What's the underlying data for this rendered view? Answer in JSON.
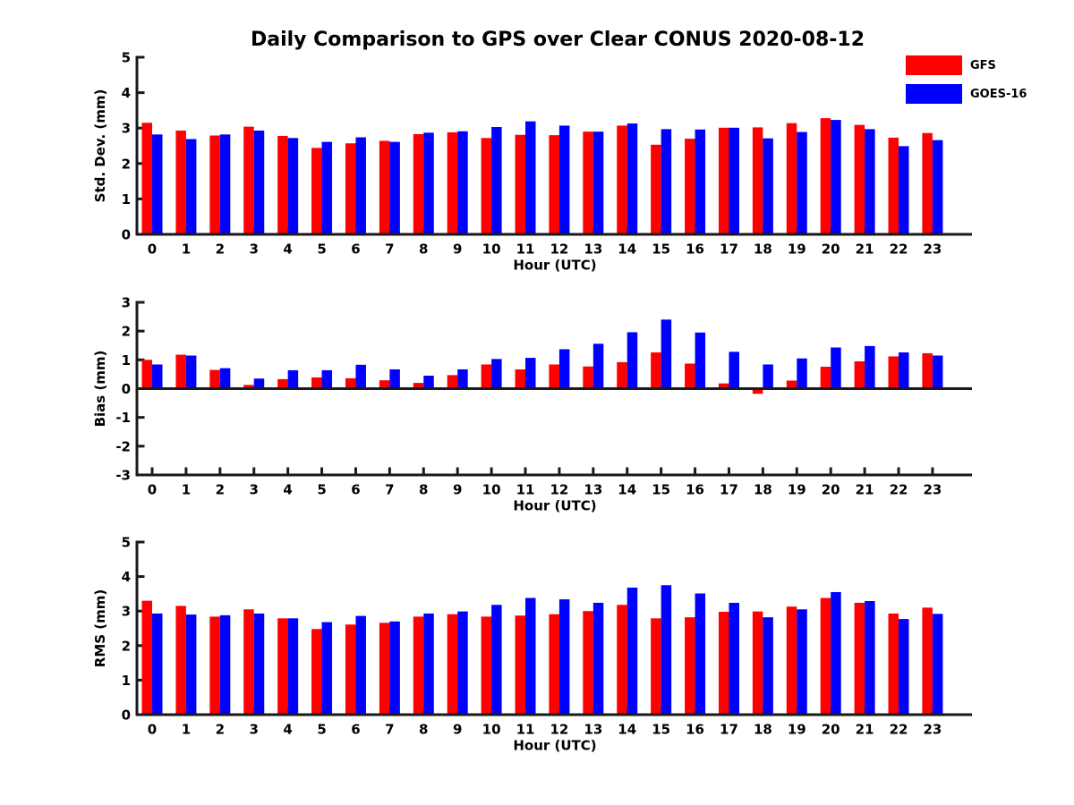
{
  "figure": {
    "title": "Daily Comparison to GPS over Clear CONUS 2020-08-12",
    "background": "#ffffff",
    "axis_color": "#1a1a1a"
  },
  "legend": {
    "position": "top-right",
    "items": [
      {
        "label": "GFS",
        "color": "#ff0000"
      },
      {
        "label": "GOES-16",
        "color": "#0000ff"
      }
    ]
  },
  "chart_data": [
    {
      "type": "bar",
      "panel": "std-dev",
      "ylabel": "Std. Dev. (mm)",
      "xlabel": "Hour (UTC)",
      "ylim": [
        0,
        5
      ],
      "yticks": [
        0,
        1,
        2,
        3,
        4,
        5
      ],
      "grid": false,
      "categories": [
        0,
        1,
        2,
        3,
        4,
        5,
        6,
        7,
        8,
        9,
        10,
        11,
        12,
        13,
        14,
        15,
        16,
        17,
        18,
        19,
        20,
        21,
        22,
        23
      ],
      "series": [
        {
          "name": "GFS",
          "color": "#ff0000",
          "values": [
            3.15,
            2.93,
            2.79,
            3.04,
            2.78,
            2.44,
            2.57,
            2.64,
            2.83,
            2.88,
            2.72,
            2.81,
            2.8,
            2.9,
            3.07,
            2.53,
            2.7,
            3.01,
            3.02,
            3.14,
            3.28,
            3.09,
            2.73,
            2.86
          ]
        },
        {
          "name": "GOES-16",
          "color": "#0000ff",
          "values": [
            2.82,
            2.69,
            2.82,
            2.93,
            2.72,
            2.61,
            2.74,
            2.61,
            2.87,
            2.91,
            3.03,
            3.19,
            3.07,
            2.9,
            3.13,
            2.97,
            2.96,
            3.01,
            2.71,
            2.89,
            3.23,
            2.97,
            2.49,
            2.66
          ]
        }
      ]
    },
    {
      "type": "bar",
      "panel": "bias",
      "ylabel": "Bias (mm)",
      "xlabel": "Hour (UTC)",
      "ylim": [
        -3,
        3
      ],
      "yticks": [
        -3,
        -2,
        -1,
        0,
        1,
        2,
        3
      ],
      "grid": false,
      "categories": [
        0,
        1,
        2,
        3,
        4,
        5,
        6,
        7,
        8,
        9,
        10,
        11,
        12,
        13,
        14,
        15,
        16,
        17,
        18,
        19,
        20,
        21,
        22,
        23
      ],
      "series": [
        {
          "name": "GFS",
          "color": "#ff0000",
          "values": [
            1.0,
            1.18,
            0.65,
            0.13,
            0.33,
            0.39,
            0.36,
            0.29,
            0.2,
            0.47,
            0.84,
            0.67,
            0.84,
            0.77,
            0.92,
            1.26,
            0.87,
            0.18,
            -0.18,
            0.28,
            0.76,
            0.95,
            1.12,
            1.23
          ]
        },
        {
          "name": "GOES-16",
          "color": "#0000ff",
          "values": [
            0.84,
            1.15,
            0.71,
            0.35,
            0.64,
            0.64,
            0.83,
            0.67,
            0.45,
            0.67,
            1.03,
            1.07,
            1.37,
            1.56,
            1.96,
            2.4,
            1.95,
            1.28,
            0.84,
            1.05,
            1.43,
            1.48,
            1.26,
            1.15
          ]
        }
      ]
    },
    {
      "type": "bar",
      "panel": "rms",
      "ylabel": "RMS (mm)",
      "xlabel": "Hour (UTC)",
      "ylim": [
        0,
        5
      ],
      "yticks": [
        0,
        1,
        2,
        3,
        4,
        5
      ],
      "grid": false,
      "categories": [
        0,
        1,
        2,
        3,
        4,
        5,
        6,
        7,
        8,
        9,
        10,
        11,
        12,
        13,
        14,
        15,
        16,
        17,
        18,
        19,
        20,
        21,
        22,
        23
      ],
      "series": [
        {
          "name": "GFS",
          "color": "#ff0000",
          "values": [
            3.3,
            3.15,
            2.84,
            3.05,
            2.79,
            2.48,
            2.61,
            2.66,
            2.84,
            2.91,
            2.84,
            2.87,
            2.91,
            3.0,
            3.18,
            2.79,
            2.82,
            2.98,
            2.99,
            3.13,
            3.38,
            3.24,
            2.93,
            3.1
          ]
        },
        {
          "name": "GOES-16",
          "color": "#0000ff",
          "values": [
            2.93,
            2.9,
            2.88,
            2.93,
            2.79,
            2.68,
            2.86,
            2.7,
            2.93,
            2.99,
            3.18,
            3.38,
            3.34,
            3.24,
            3.68,
            3.75,
            3.51,
            3.24,
            2.82,
            3.05,
            3.55,
            3.29,
            2.77,
            2.92
          ]
        }
      ]
    }
  ]
}
